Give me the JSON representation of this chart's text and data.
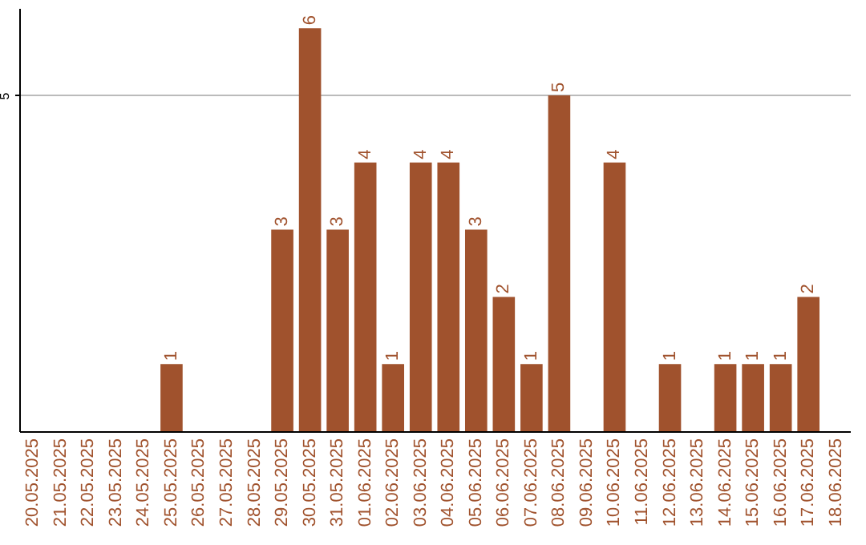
{
  "chart_data": {
    "type": "bar",
    "categories": [
      "20.05.2025",
      "21.05.2025",
      "22.05.2025",
      "23.05.2025",
      "24.05.2025",
      "25.05.2025",
      "26.05.2025",
      "27.05.2025",
      "28.05.2025",
      "29.05.2025",
      "30.05.2025",
      "31.05.2025",
      "01.06.2025",
      "02.06.2025",
      "03.06.2025",
      "04.06.2025",
      "05.06.2025",
      "06.06.2025",
      "07.06.2025",
      "08.06.2025",
      "09.06.2025",
      "10.06.2025",
      "11.06.2025",
      "12.06.2025",
      "13.06.2025",
      "14.06.2025",
      "15.06.2025",
      "16.06.2025",
      "17.06.2025",
      "18.06.2025"
    ],
    "values": [
      0,
      0,
      0,
      0,
      0,
      1,
      0,
      0,
      0,
      3,
      6,
      3,
      4,
      1,
      4,
      4,
      3,
      2,
      1,
      5,
      0,
      4,
      0,
      1,
      0,
      1,
      1,
      1,
      2,
      0
    ],
    "value_labels": [
      null,
      null,
      null,
      null,
      null,
      "1",
      null,
      null,
      null,
      "3",
      "6",
      "3",
      "4",
      "1",
      "4",
      "4",
      "3",
      "2",
      "1",
      "5",
      null,
      "4",
      null,
      "1",
      null,
      "1",
      "1",
      "1",
      "2",
      null
    ],
    "color": "#a0522d",
    "ylim": [
      0,
      6.3
    ],
    "yticks": [
      5
    ],
    "grid": "y"
  }
}
